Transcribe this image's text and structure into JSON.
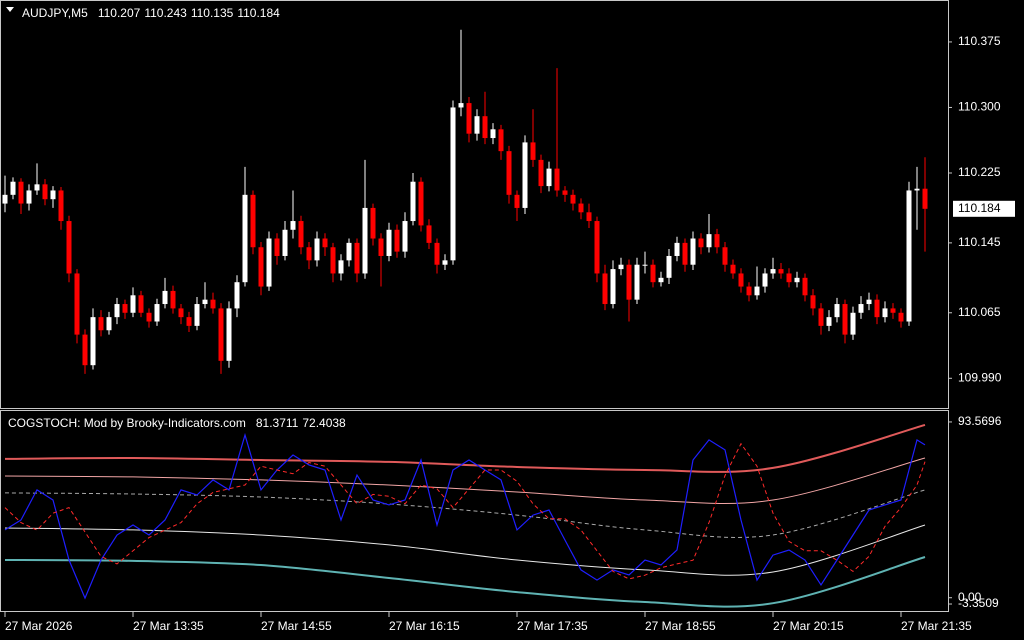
{
  "chart_data": [
    {
      "type": "candlestick",
      "title": "AUDJPY,M5",
      "bull_color": "#ffffff",
      "bear_color": "#ff0000",
      "ylim": [
        109.956,
        110.423
      ],
      "yticks": [
        110.375,
        {
          "value": 110.3,
          "label": "110.300"
        },
        110.225,
        110.145,
        110.065,
        {
          "value": 109.99,
          "label": "109.990"
        }
      ],
      "xticks": [
        {
          "value": 0,
          "label": "27 Mar 2026"
        },
        {
          "value": 16,
          "label": "27 Mar 13:35"
        },
        {
          "value": 32,
          "label": "27 Mar 14:55"
        },
        {
          "value": 48,
          "label": "27 Mar 16:15"
        },
        {
          "value": 64,
          "label": "27 Mar 17:35"
        },
        {
          "value": 80,
          "label": "27 Mar 18:55"
        },
        {
          "value": 96,
          "label": "27 Mar 20:15"
        },
        {
          "value": 112,
          "label": "27 Mar 21:35"
        }
      ],
      "candles": [
        [
          110.19,
          110.222,
          110.18,
          110.2
        ],
        [
          110.2,
          110.22,
          110.195,
          110.215
        ],
        [
          110.215,
          110.219,
          110.178,
          110.19
        ],
        [
          110.19,
          110.212,
          110.182,
          110.205
        ],
        [
          110.205,
          110.236,
          110.2,
          110.212
        ],
        [
          110.212,
          110.218,
          110.188,
          110.195
        ],
        [
          110.195,
          110.21,
          110.185,
          110.205
        ],
        [
          110.205,
          110.209,
          110.16,
          110.17
        ],
        [
          110.17,
          110.176,
          110.1,
          110.11
        ],
        [
          110.11,
          110.115,
          110.03,
          110.04
        ],
        [
          110.04,
          110.046,
          109.995,
          110.005
        ],
        [
          110.005,
          110.07,
          110.0,
          110.06
        ],
        [
          110.06,
          110.068,
          110.038,
          110.045
        ],
        [
          110.045,
          110.066,
          110.04,
          110.06
        ],
        [
          110.06,
          110.082,
          110.052,
          110.075
        ],
        [
          110.075,
          110.08,
          110.058,
          110.065
        ],
        [
          110.065,
          110.094,
          110.06,
          110.085
        ],
        [
          110.085,
          110.09,
          110.06,
          110.065
        ],
        [
          110.065,
          110.07,
          110.048,
          110.055
        ],
        [
          110.055,
          110.081,
          110.05,
          110.075
        ],
        [
          110.075,
          110.105,
          110.07,
          110.09
        ],
        [
          110.09,
          110.096,
          110.064,
          110.07
        ],
        [
          110.07,
          110.075,
          110.052,
          110.06
        ],
        [
          110.06,
          110.066,
          110.043,
          110.05
        ],
        [
          110.05,
          110.083,
          110.045,
          110.075
        ],
        [
          110.075,
          110.1,
          110.07,
          110.08
        ],
        [
          110.08,
          110.088,
          110.064,
          110.07
        ],
        [
          110.07,
          110.076,
          109.995,
          110.01
        ],
        [
          110.01,
          110.078,
          110.002,
          110.07
        ],
        [
          110.07,
          110.108,
          110.06,
          110.1
        ],
        [
          110.1,
          110.232,
          110.095,
          110.2
        ],
        [
          110.2,
          110.205,
          110.132,
          110.14
        ],
        [
          110.14,
          110.146,
          110.085,
          110.095
        ],
        [
          110.095,
          110.158,
          110.09,
          110.15
        ],
        [
          110.15,
          110.156,
          110.12,
          110.13
        ],
        [
          110.13,
          110.17,
          110.125,
          110.16
        ],
        [
          110.16,
          110.205,
          110.15,
          110.17
        ],
        [
          110.17,
          110.176,
          110.132,
          110.14
        ],
        [
          110.14,
          110.146,
          110.115,
          110.125
        ],
        [
          110.125,
          110.158,
          110.118,
          110.15
        ],
        [
          110.15,
          110.156,
          110.13,
          110.14
        ],
        [
          110.14,
          110.145,
          110.1,
          110.11
        ],
        [
          110.11,
          110.132,
          110.102,
          110.125
        ],
        [
          110.125,
          110.15,
          110.118,
          110.145
        ],
        [
          110.145,
          110.15,
          110.1,
          110.11
        ],
        [
          110.11,
          110.24,
          110.104,
          110.185
        ],
        [
          110.185,
          110.19,
          110.142,
          110.15
        ],
        [
          110.15,
          110.156,
          110.095,
          110.13
        ],
        [
          110.13,
          110.168,
          110.124,
          110.16
        ],
        [
          110.16,
          110.166,
          110.128,
          110.135
        ],
        [
          110.135,
          110.18,
          110.128,
          110.17
        ],
        [
          110.17,
          110.225,
          110.165,
          110.215
        ],
        [
          110.215,
          110.22,
          110.158,
          110.165
        ],
        [
          110.165,
          110.172,
          110.138,
          110.145
        ],
        [
          110.145,
          110.15,
          110.11,
          110.12
        ],
        [
          110.12,
          110.132,
          110.114,
          110.125
        ],
        [
          110.125,
          110.308,
          110.12,
          110.3
        ],
        [
          110.3,
          110.389,
          110.29,
          110.305
        ],
        [
          110.305,
          110.312,
          110.26,
          110.27
        ],
        [
          110.27,
          110.298,
          110.262,
          110.29
        ],
        [
          110.29,
          110.318,
          110.258,
          110.265
        ],
        [
          110.265,
          110.282,
          110.258,
          110.275
        ],
        [
          110.275,
          110.28,
          110.24,
          110.25
        ],
        [
          110.25,
          110.256,
          110.19,
          110.2
        ],
        [
          110.2,
          110.205,
          110.17,
          110.185
        ],
        [
          110.185,
          110.268,
          110.178,
          110.26
        ],
        [
          110.26,
          110.298,
          110.232,
          110.24
        ],
        [
          110.24,
          110.246,
          110.202,
          110.21
        ],
        [
          110.21,
          110.238,
          110.204,
          110.23
        ],
        [
          110.23,
          110.345,
          110.198,
          110.205
        ],
        [
          110.205,
          110.21,
          110.192,
          110.2
        ],
        [
          110.2,
          110.206,
          110.182,
          110.19
        ],
        [
          110.19,
          110.196,
          110.172,
          110.18
        ],
        [
          110.18,
          110.19,
          110.162,
          110.17
        ],
        [
          110.17,
          110.175,
          110.1,
          110.11
        ],
        [
          110.11,
          110.12,
          110.068,
          110.075
        ],
        [
          110.075,
          110.125,
          110.07,
          110.115
        ],
        [
          110.115,
          110.128,
          110.108,
          110.12
        ],
        [
          110.12,
          110.126,
          110.055,
          110.08
        ],
        [
          110.08,
          110.128,
          110.075,
          110.12
        ],
        [
          110.12,
          110.135,
          110.11,
          110.12
        ],
        [
          110.12,
          110.126,
          110.094,
          110.1
        ],
        [
          110.1,
          110.112,
          110.095,
          110.105
        ],
        [
          110.105,
          110.138,
          110.098,
          110.13
        ],
        [
          110.13,
          110.152,
          110.124,
          110.145
        ],
        [
          110.145,
          110.15,
          110.112,
          110.12
        ],
        [
          110.12,
          110.158,
          110.114,
          110.15
        ],
        [
          110.15,
          110.156,
          110.132,
          110.14
        ],
        [
          110.14,
          110.178,
          110.134,
          110.155
        ],
        [
          110.155,
          110.161,
          110.133,
          110.14
        ],
        [
          110.14,
          110.146,
          110.112,
          110.12
        ],
        [
          110.12,
          110.126,
          110.104,
          110.11
        ],
        [
          110.11,
          110.116,
          110.088,
          110.095
        ],
        [
          110.095,
          110.1,
          110.078,
          110.085
        ],
        [
          110.085,
          110.118,
          110.08,
          110.095
        ],
        [
          110.095,
          110.116,
          110.088,
          110.11
        ],
        [
          110.11,
          110.128,
          110.104,
          110.115
        ],
        [
          110.115,
          110.122,
          110.104,
          110.11
        ],
        [
          110.11,
          110.116,
          110.094,
          110.1
        ],
        [
          110.1,
          110.112,
          110.094,
          110.105
        ],
        [
          110.105,
          110.11,
          110.078,
          110.085
        ],
        [
          110.085,
          110.092,
          110.062,
          110.07
        ],
        [
          110.07,
          110.076,
          110.04,
          110.05
        ],
        [
          110.05,
          110.068,
          110.044,
          110.06
        ],
        [
          110.06,
          110.082,
          110.054,
          110.075
        ],
        [
          110.075,
          110.08,
          110.03,
          110.04
        ],
        [
          110.04,
          110.072,
          110.034,
          110.065
        ],
        [
          110.065,
          110.084,
          110.058,
          110.075
        ],
        [
          110.075,
          110.088,
          110.068,
          110.08
        ],
        [
          110.08,
          110.086,
          110.052,
          110.06
        ],
        [
          110.06,
          110.078,
          110.054,
          110.07
        ],
        [
          110.07,
          110.076,
          110.058,
          110.065
        ],
        [
          110.065,
          110.07,
          110.048,
          110.055
        ],
        [
          110.055,
          110.215,
          110.05,
          110.205
        ],
        [
          110.205,
          110.232,
          110.16,
          110.207
        ],
        [
          110.207,
          110.243,
          110.135,
          110.184
        ]
      ]
    },
    {
      "type": "line",
      "title": "COGSTOCH: Mod by Brooky-Indicators.com",
      "ylim": [
        -7.6,
        99.4
      ],
      "yticks": [
        93.5696,
        -3.3509,
        {
          "value": 0,
          "label": "0.00"
        }
      ],
      "x": [
        0,
        2,
        4,
        6,
        8,
        10,
        12,
        14,
        16,
        18,
        20,
        22,
        24,
        26,
        28,
        30,
        32,
        34,
        36,
        38,
        40,
        42,
        44,
        46,
        48,
        50,
        52,
        54,
        56,
        58,
        60,
        62,
        64,
        66,
        68,
        70,
        72,
        74,
        76,
        78,
        80,
        82,
        84,
        86,
        88,
        90,
        92,
        94,
        96,
        98,
        100,
        102,
        104,
        106,
        108,
        110,
        112,
        114,
        115
      ],
      "series": [
        {
          "color": "#1f1fff",
          "width": 1.2,
          "dashed": false,
          "values": [
            36.1,
            41.4,
            57.4,
            52.0,
            20.1,
            -0.2,
            20.1,
            33.4,
            38.7,
            33.4,
            41.4,
            57.4,
            54.7,
            62.7,
            57.4,
            86.6,
            57.4,
            68.0,
            76.0,
            70.7,
            68.0,
            41.4,
            65.3,
            52.0,
            49.4,
            52.0,
            73.3,
            38.7,
            68.0,
            73.3,
            68.0,
            62.7,
            36.1,
            44.0,
            46.7,
            30.7,
            14.8,
            9.4,
            14.8,
            12.1,
            20.1,
            17.4,
            25.4,
            73.3,
            84.0,
            78.7,
            41.4,
            9.4,
            22.7,
            25.4,
            20.1,
            6.8,
            20.1,
            33.4,
            46.7,
            49.4,
            52.0,
            84.0,
            81.3711
          ]
        },
        {
          "color": "#ff2a2a",
          "width": 1,
          "dashed": true,
          "values": [
            48,
            40,
            36,
            45,
            48,
            35,
            22,
            18,
            25,
            32,
            36,
            40,
            50,
            56,
            58,
            60,
            70,
            68,
            66,
            72,
            70,
            60,
            50,
            55,
            54,
            50,
            60,
            58,
            48,
            58,
            68,
            68,
            62,
            50,
            42,
            42,
            36,
            25,
            14,
            10,
            12,
            16,
            18,
            20,
            40,
            65,
            82,
            70,
            45,
            30,
            25,
            25,
            20,
            14,
            22,
            38,
            48,
            60,
            72.4038
          ]
        }
      ],
      "bands": {
        "x": [
          0,
          16,
          32,
          48,
          64,
          80,
          96,
          115
        ],
        "series": [
          {
            "color": "#e05a5a",
            "width": 2,
            "dashed": false,
            "values": [
              73.9,
              74.4,
              73.3,
              72.3,
              69.6,
              68.0,
              69.1,
              92.0
            ]
          },
          {
            "color": "#f2a6a6",
            "width": 1,
            "dashed": false,
            "values": [
              64.8,
              64.3,
              62.7,
              60.0,
              56.3,
              52.0,
              52.0,
              74.4
            ]
          },
          {
            "color": "#a8a8a8",
            "width": 1,
            "dashed": true,
            "values": [
              55.8,
              55.2,
              53.6,
              49.9,
              44.0,
              36.1,
              33.4,
              57.4
            ]
          },
          {
            "color": "#e8e8e8",
            "width": 1,
            "dashed": false,
            "values": [
              37.1,
              36.1,
              33.4,
              28.1,
              20.1,
              14.8,
              13.7,
              38.7
            ]
          },
          {
            "color": "#5fb3b3",
            "width": 2,
            "dashed": false,
            "values": [
              20.1,
              19.6,
              17.4,
              10.5,
              3.0,
              -2.3,
              -2.9,
              21.7
            ]
          }
        ]
      }
    }
  ]
}
